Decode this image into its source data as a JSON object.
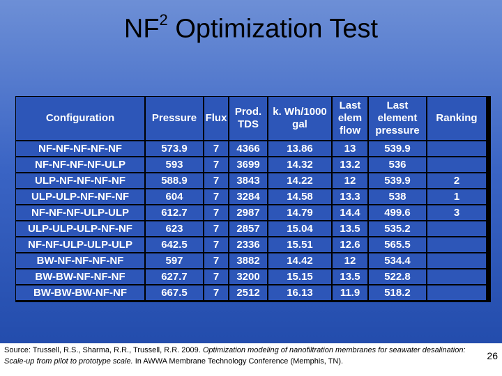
{
  "slide": {
    "title_main": "NF",
    "title_sup": "2",
    "title_rest": " Optimization Test",
    "page_number": "26",
    "source_prefix": "Source: Trussell, R.S., Sharma, R.R., Trussell, R.R. 2009. ",
    "source_italic": "Optimization modeling of nanofiltration membranes for seawater desalination: Scale-up from pilot to prototype scale.",
    "source_suffix": " In AWWA Membrane Technology Conference (Memphis, TN)."
  },
  "table": {
    "headers": [
      "Configuration",
      "Pressure",
      "Flux",
      "Prod. TDS",
      "k. Wh/1000 gal",
      "Last elem flow",
      "Last element pressure",
      "Ranking"
    ],
    "rows": [
      [
        "NF-NF-NF-NF-NF",
        "573.9",
        "7",
        "4366",
        "13.86",
        "13",
        "539.9",
        ""
      ],
      [
        "NF-NF-NF-NF-ULP",
        "593",
        "7",
        "3699",
        "14.32",
        "13.2",
        "536",
        ""
      ],
      [
        "ULP-NF-NF-NF-NF",
        "588.9",
        "7",
        "3843",
        "14.22",
        "12",
        "539.9",
        "2"
      ],
      [
        "ULP-ULP-NF-NF-NF",
        "604",
        "7",
        "3284",
        "14.58",
        "13.3",
        "538",
        "1"
      ],
      [
        "NF-NF-NF-ULP-ULP",
        "612.7",
        "7",
        "2987",
        "14.79",
        "14.4",
        "499.6",
        "3"
      ],
      [
        "ULP-ULP-ULP-NF-NF",
        "623",
        "7",
        "2857",
        "15.04",
        "13.5",
        "535.2",
        ""
      ],
      [
        "NF-NF-ULP-ULP-ULP",
        "642.5",
        "7",
        "2336",
        "15.51",
        "12.6",
        "565.5",
        ""
      ],
      [
        "BW-NF-NF-NF-NF",
        "597",
        "7",
        "3882",
        "14.42",
        "12",
        "534.4",
        ""
      ],
      [
        "BW-BW-NF-NF-NF",
        "627.7",
        "7",
        "3200",
        "15.15",
        "13.5",
        "522.8",
        ""
      ],
      [
        "BW-BW-BW-NF-NF",
        "667.5",
        "7",
        "2512",
        "16.13",
        "11.9",
        "518.2",
        ""
      ]
    ]
  }
}
